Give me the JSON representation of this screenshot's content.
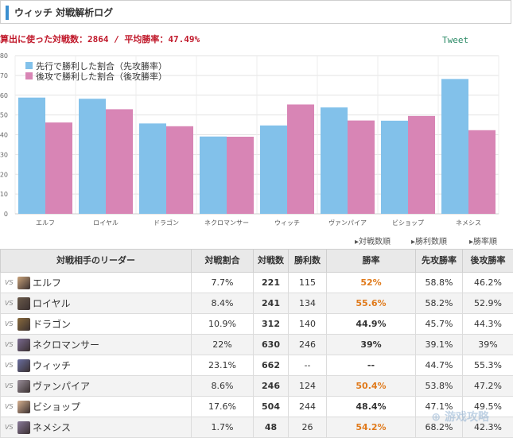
{
  "header": {
    "title": "ウィッチ 対戦解析ログ"
  },
  "summary": "算出に使った対戦数：2864 / 平均勝率：47.49%",
  "tweet_label": "Tweet",
  "colors": {
    "first": "#82c1ea",
    "second": "#d885b5",
    "accent_title_bar": "#3b8fd0",
    "summary_text": "#c0182a",
    "highlight": "#e07a1b"
  },
  "chart_data": {
    "type": "bar",
    "categories": [
      "エルフ",
      "ロイヤル",
      "ドラゴン",
      "ネクロマンサー",
      "ウィッチ",
      "ヴァンパイア",
      "ビショップ",
      "ネメシス"
    ],
    "series": [
      {
        "name": "先行で勝利した割合（先攻勝率）",
        "values": [
          58.8,
          58.2,
          45.7,
          39.1,
          44.7,
          53.8,
          47.1,
          68.2
        ]
      },
      {
        "name": "後攻で勝利した割合（後攻勝率）",
        "values": [
          46.2,
          52.9,
          44.3,
          39,
          55.3,
          47.2,
          49.5,
          42.3
        ]
      }
    ],
    "yticks": [
      "0",
      "10",
      "20",
      "30",
      "40",
      "50",
      "60",
      "70",
      "80"
    ],
    "ylim": [
      0,
      80
    ],
    "legend_position": "top-left",
    "grid": true
  },
  "sort_links": [
    "▸対戦数順",
    "▸勝利数順",
    "▸勝率順"
  ],
  "table": {
    "headers": [
      "対戦相手のリーダー",
      "対戦割合",
      "対戦数",
      "勝利数",
      "勝率",
      "先攻勝率",
      "後攻勝率"
    ],
    "vs_label": "VS",
    "rows": [
      {
        "leader": "エルフ",
        "icon": "elf-avatar-icon",
        "ratio": "7.7%",
        "games": "221",
        "wins": "115",
        "winrate": "52%",
        "first": "58.8%",
        "second": "46.2%",
        "highlight": true
      },
      {
        "leader": "ロイヤル",
        "icon": "royal-avatar-icon",
        "ratio": "8.4%",
        "games": "241",
        "wins": "134",
        "winrate": "55.6%",
        "first": "58.2%",
        "second": "52.9%",
        "highlight": true
      },
      {
        "leader": "ドラゴン",
        "icon": "dragon-avatar-icon",
        "ratio": "10.9%",
        "games": "312",
        "wins": "140",
        "winrate": "44.9%",
        "first": "45.7%",
        "second": "44.3%",
        "highlight": false
      },
      {
        "leader": "ネクロマンサー",
        "icon": "necromancer-avatar-icon",
        "ratio": "22%",
        "games": "630",
        "wins": "246",
        "winrate": "39%",
        "first": "39.1%",
        "second": "39%",
        "highlight": false
      },
      {
        "leader": "ウィッチ",
        "icon": "witch-avatar-icon",
        "ratio": "23.1%",
        "games": "662",
        "wins": "--",
        "winrate": "--",
        "first": "44.7%",
        "second": "55.3%",
        "highlight": false
      },
      {
        "leader": "ヴァンパイア",
        "icon": "vampire-avatar-icon",
        "ratio": "8.6%",
        "games": "246",
        "wins": "124",
        "winrate": "50.4%",
        "first": "53.8%",
        "second": "47.2%",
        "highlight": true
      },
      {
        "leader": "ビショップ",
        "icon": "bishop-avatar-icon",
        "ratio": "17.6%",
        "games": "504",
        "wins": "244",
        "winrate": "48.4%",
        "first": "47.1%",
        "second": "49.5%",
        "highlight": false
      },
      {
        "leader": "ネメシス",
        "icon": "nemesis-avatar-icon",
        "ratio": "1.7%",
        "games": "48",
        "wins": "26",
        "winrate": "54.2%",
        "first": "68.2%",
        "second": "42.3%",
        "highlight": true
      }
    ]
  }
}
